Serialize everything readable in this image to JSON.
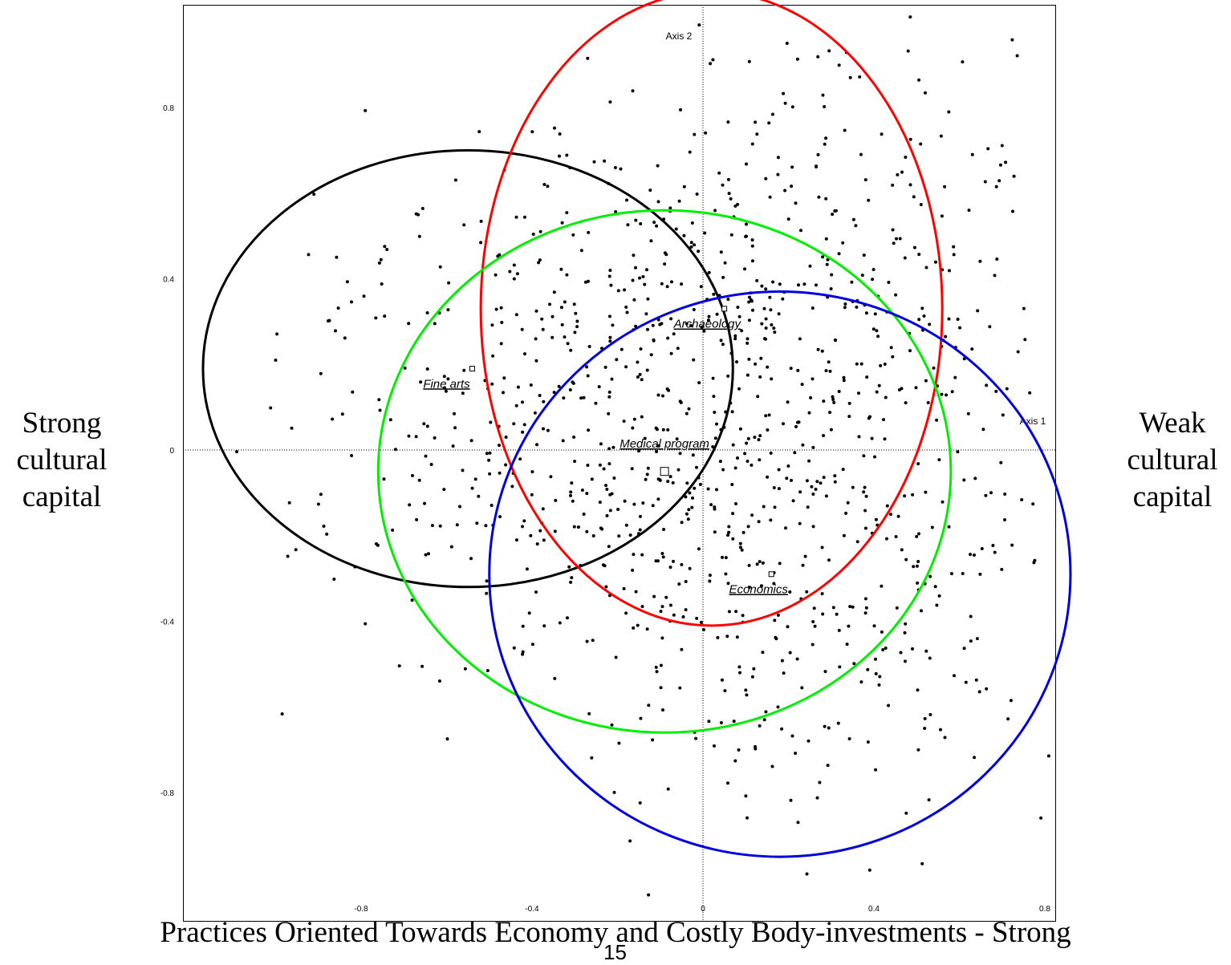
{
  "chart_data": {
    "type": "scatter",
    "title": "",
    "xlabel": "Axis 1",
    "ylabel": "Axis 2",
    "xlim": [
      -1.21,
      0.83
    ],
    "ylim": [
      -1.06,
      1.04
    ],
    "x_ticks": [
      -0.8,
      -0.4,
      0,
      0.4,
      0.8
    ],
    "x_tick_labels": [
      "-0.8",
      "-0.4",
      "0",
      "0.4",
      "0.8"
    ],
    "y_ticks": [
      0.8,
      0.4,
      0,
      -0.4,
      -0.8
    ],
    "y_tick_labels": [
      "0.8",
      "0.4",
      "0",
      "-0.4",
      "-0.8"
    ],
    "grid": false,
    "category_points": [
      {
        "label": "Archaeology",
        "x": 0.05,
        "y": 0.33,
        "label_x": 0.01,
        "label_y": 0.28
      },
      {
        "label": "Fine arts",
        "x": -0.54,
        "y": 0.19,
        "label_x": -0.6,
        "label_y": 0.14
      },
      {
        "label": "Medical program",
        "x": -0.09,
        "y": -0.05,
        "label_x": -0.09,
        "label_y": 0.0
      },
      {
        "label": "Economics",
        "x": 0.16,
        "y": -0.29,
        "label_x": 0.13,
        "label_y": -0.34
      }
    ],
    "ellipses": [
      {
        "group": "Fine arts",
        "color": "#000000",
        "cx": -0.55,
        "cy": 0.19,
        "rx": 0.62,
        "ry": 0.51
      },
      {
        "group": "Archaeology",
        "color": "#ff0000",
        "cx": 0.02,
        "cy": 0.33,
        "rx": 0.54,
        "ry": 0.74
      },
      {
        "group": "Medical program",
        "color": "#00ee00",
        "cx": -0.09,
        "cy": -0.05,
        "rx": 0.67,
        "ry": 0.61
      },
      {
        "group": "Economics",
        "color": "#0000dd",
        "cx": 0.18,
        "cy": -0.29,
        "rx": 0.68,
        "ry": 0.66
      }
    ],
    "individuals_summary": "cloud of approximately 1100 individual points centered near (0, 0), spread over x from -1.2 to 0.8 and y from -1.0 to 1.0"
  },
  "labels": {
    "left": [
      "Strong",
      "cultural",
      "capital"
    ],
    "right": [
      "Weak",
      "cultural",
      "capital"
    ],
    "bottom": "Practices Oriented Towards Economy and Costly Body-investments - Strong",
    "page_number": "15"
  }
}
